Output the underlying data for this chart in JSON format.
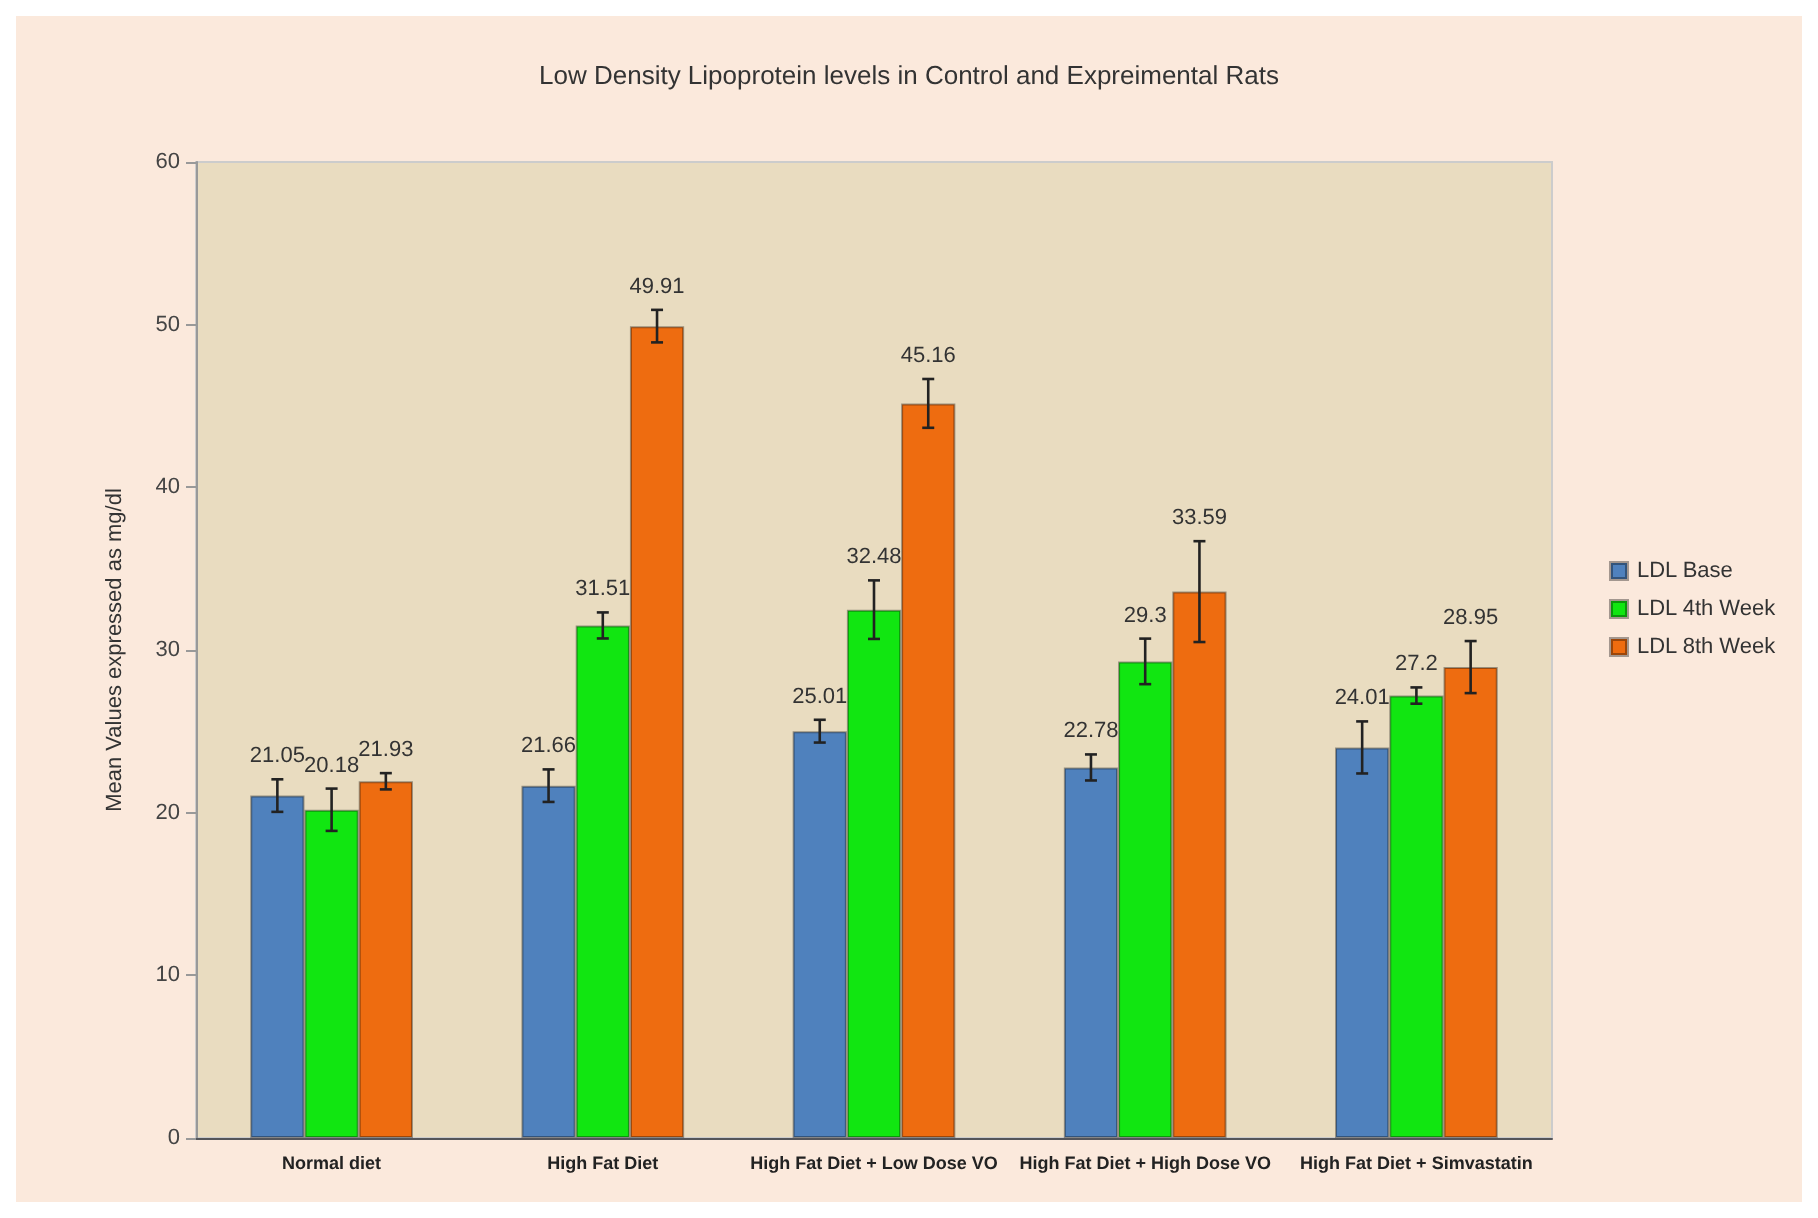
{
  "chart_data": {
    "type": "bar",
    "title": "Low Density Lipoprotein levels in Control and Expreimental Rats",
    "ylabel": "Mean Values expressed as mg/dl",
    "categories": [
      "Normal diet",
      "High Fat Diet",
      "High Fat Diet + Low Dose VO",
      "High Fat Diet + High Dose VO",
      "High Fat Diet + Simvastatin"
    ],
    "series": [
      {
        "name": "LDL Base",
        "color": "#4f81bd",
        "values": [
          21.05,
          21.66,
          25.01,
          22.78,
          24.01
        ],
        "errors": [
          1,
          1,
          0.7,
          0.8,
          1.6
        ]
      },
      {
        "name": "LDL 4th Week",
        "color": "#11e611",
        "values": [
          20.18,
          31.51,
          32.48,
          29.3,
          27.2
        ],
        "errors": [
          1.3,
          0.8,
          1.8,
          1.4,
          0.5
        ]
      },
      {
        "name": "LDL 8th Week",
        "color": "#ee6c10",
        "values": [
          21.93,
          49.91,
          45.16,
          33.59,
          28.95
        ],
        "errors": [
          0.5,
          1,
          1.5,
          3.1,
          1.6
        ]
      }
    ],
    "ylim": [
      0,
      60
    ],
    "yticks": [
      0,
      10,
      20,
      30,
      40,
      50,
      60
    ],
    "grid": false,
    "legend": "right",
    "data_labels": true
  }
}
